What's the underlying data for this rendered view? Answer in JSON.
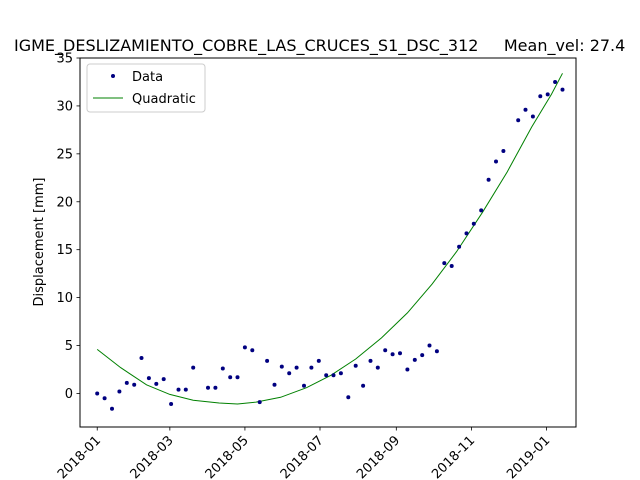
{
  "chart_data": {
    "type": "scatter",
    "title": "IGME_DESLIZAMIENTO_COBRE_LAS_CRUCES_S1_DSC_312     Mean_vel: 27.4",
    "xlabel": "",
    "ylabel": "Displacement [mm]",
    "xlim": [
      "2017-12-18",
      "2019-01-25"
    ],
    "ylim": [
      -3.5,
      35
    ],
    "x_ticks": [
      "2018-01",
      "2018-03",
      "2018-05",
      "2018-07",
      "2018-09",
      "2018-11",
      "2019-01"
    ],
    "y_ticks": [
      0,
      5,
      10,
      15,
      20,
      25,
      30,
      35
    ],
    "grid": false,
    "legend_position": "upper-left",
    "series": [
      {
        "name": "Data",
        "kind": "points",
        "color": "#000080",
        "points": [
          {
            "x": "2018-01-01",
            "y": 0.0
          },
          {
            "x": "2018-01-07",
            "y": -0.5
          },
          {
            "x": "2018-01-13",
            "y": -1.6
          },
          {
            "x": "2018-01-19",
            "y": 0.2
          },
          {
            "x": "2018-01-25",
            "y": 1.1
          },
          {
            "x": "2018-01-31",
            "y": 0.9
          },
          {
            "x": "2018-02-06",
            "y": 3.7
          },
          {
            "x": "2018-02-12",
            "y": 1.6
          },
          {
            "x": "2018-02-18",
            "y": 1.0
          },
          {
            "x": "2018-02-24",
            "y": 1.5
          },
          {
            "x": "2018-03-02",
            "y": -1.1
          },
          {
            "x": "2018-03-08",
            "y": 0.4
          },
          {
            "x": "2018-03-14",
            "y": 0.4
          },
          {
            "x": "2018-03-20",
            "y": 2.7
          },
          {
            "x": "2018-04-01",
            "y": 0.6
          },
          {
            "x": "2018-04-07",
            "y": 0.6
          },
          {
            "x": "2018-04-13",
            "y": 2.6
          },
          {
            "x": "2018-04-19",
            "y": 1.7
          },
          {
            "x": "2018-04-25",
            "y": 1.7
          },
          {
            "x": "2018-05-01",
            "y": 4.8
          },
          {
            "x": "2018-05-07",
            "y": 4.5
          },
          {
            "x": "2018-05-13",
            "y": -0.9
          },
          {
            "x": "2018-05-19",
            "y": 3.4
          },
          {
            "x": "2018-05-25",
            "y": 0.9
          },
          {
            "x": "2018-05-31",
            "y": 2.8
          },
          {
            "x": "2018-06-06",
            "y": 2.1
          },
          {
            "x": "2018-06-12",
            "y": 2.7
          },
          {
            "x": "2018-06-18",
            "y": 0.8
          },
          {
            "x": "2018-06-24",
            "y": 2.7
          },
          {
            "x": "2018-06-30",
            "y": 3.4
          },
          {
            "x": "2018-07-06",
            "y": 1.9
          },
          {
            "x": "2018-07-12",
            "y": 1.9
          },
          {
            "x": "2018-07-18",
            "y": 2.1
          },
          {
            "x": "2018-07-24",
            "y": -0.4
          },
          {
            "x": "2018-07-30",
            "y": 2.9
          },
          {
            "x": "2018-08-05",
            "y": 0.8
          },
          {
            "x": "2018-08-11",
            "y": 3.4
          },
          {
            "x": "2018-08-17",
            "y": 2.7
          },
          {
            "x": "2018-08-23",
            "y": 4.5
          },
          {
            "x": "2018-08-29",
            "y": 4.1
          },
          {
            "x": "2018-09-04",
            "y": 4.2
          },
          {
            "x": "2018-09-10",
            "y": 2.5
          },
          {
            "x": "2018-09-16",
            "y": 3.5
          },
          {
            "x": "2018-09-22",
            "y": 4.0
          },
          {
            "x": "2018-09-28",
            "y": 5.0
          },
          {
            "x": "2018-10-04",
            "y": 4.4
          },
          {
            "x": "2018-10-10",
            "y": 13.6
          },
          {
            "x": "2018-10-16",
            "y": 13.3
          },
          {
            "x": "2018-10-22",
            "y": 15.3
          },
          {
            "x": "2018-10-28",
            "y": 16.7
          },
          {
            "x": "2018-11-03",
            "y": 17.7
          },
          {
            "x": "2018-11-09",
            "y": 19.1
          },
          {
            "x": "2018-11-15",
            "y": 22.3
          },
          {
            "x": "2018-11-21",
            "y": 24.2
          },
          {
            "x": "2018-11-27",
            "y": 25.3
          },
          {
            "x": "2018-12-09",
            "y": 28.5
          },
          {
            "x": "2018-12-15",
            "y": 29.6
          },
          {
            "x": "2018-12-21",
            "y": 28.9
          },
          {
            "x": "2018-12-27",
            "y": 31.0
          },
          {
            "x": "2019-01-02",
            "y": 31.2
          },
          {
            "x": "2019-01-08",
            "y": 32.5
          },
          {
            "x": "2019-01-14",
            "y": 31.7
          }
        ]
      },
      {
        "name": "Quadratic",
        "kind": "line",
        "color": "#008000",
        "points": [
          {
            "x": "2018-01-01",
            "y": 4.6
          },
          {
            "x": "2018-01-20",
            "y": 2.7
          },
          {
            "x": "2018-02-10",
            "y": 0.9
          },
          {
            "x": "2018-03-01",
            "y": -0.1
          },
          {
            "x": "2018-03-20",
            "y": -0.7
          },
          {
            "x": "2018-04-10",
            "y": -1.0
          },
          {
            "x": "2018-04-25",
            "y": -1.1
          },
          {
            "x": "2018-05-10",
            "y": -0.9
          },
          {
            "x": "2018-05-30",
            "y": -0.4
          },
          {
            "x": "2018-06-20",
            "y": 0.6
          },
          {
            "x": "2018-07-10",
            "y": 1.9
          },
          {
            "x": "2018-07-30",
            "y": 3.6
          },
          {
            "x": "2018-08-20",
            "y": 5.8
          },
          {
            "x": "2018-09-10",
            "y": 8.4
          },
          {
            "x": "2018-09-30",
            "y": 11.4
          },
          {
            "x": "2018-10-20",
            "y": 14.8
          },
          {
            "x": "2018-11-10",
            "y": 18.9
          },
          {
            "x": "2018-11-30",
            "y": 23.1
          },
          {
            "x": "2018-12-20",
            "y": 27.8
          },
          {
            "x": "2019-01-05",
            "y": 31.2
          },
          {
            "x": "2019-01-14",
            "y": 33.4
          }
        ]
      }
    ]
  }
}
